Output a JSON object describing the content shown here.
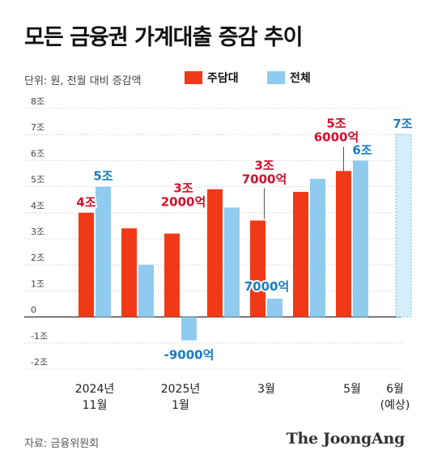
{
  "title": "모든 금융권 가계대출 증감 추이",
  "unit_note": "단위: 원, 전월 대비 증감액",
  "source": "자료: 금융위원회",
  "brand": "The JoongAng",
  "colors": {
    "red": "#f03a17",
    "blue": "#8ecbee",
    "label_red": "#d0102a",
    "label_blue": "#1a7cc4"
  },
  "chart_data": {
    "type": "bar",
    "ylim": [
      -2,
      8
    ],
    "y_ticks": [
      {
        "v": 8,
        "label": "8조"
      },
      {
        "v": 7,
        "label": "7조"
      },
      {
        "v": 6,
        "label": "6조"
      },
      {
        "v": 5,
        "label": "5조"
      },
      {
        "v": 4,
        "label": "4조"
      },
      {
        "v": 3,
        "label": "3조"
      },
      {
        "v": 2,
        "label": "2조"
      },
      {
        "v": 1,
        "label": "1조"
      },
      {
        "v": 0,
        "label": "0"
      },
      {
        "v": -1,
        "label": "-1조"
      },
      {
        "v": -2,
        "label": "-2조"
      }
    ],
    "x_labels": [
      {
        "group": 0,
        "lines": [
          "2024년",
          "11월"
        ]
      },
      {
        "group": 2,
        "lines": [
          "2025년",
          "1월"
        ]
      },
      {
        "group": 4,
        "lines": [
          "3월"
        ]
      },
      {
        "group": 6,
        "lines": [
          "5월"
        ]
      },
      {
        "group": 7,
        "lines": [
          "6월",
          "(예상)"
        ]
      }
    ],
    "series": [
      {
        "name": "주담대",
        "values": [
          4.0,
          3.4,
          3.2,
          4.9,
          3.7,
          4.8,
          5.6,
          null
        ]
      },
      {
        "name": "전체",
        "values": [
          5.0,
          2.0,
          -0.9,
          4.2,
          0.7,
          5.3,
          6.0,
          7.0
        ]
      }
    ],
    "projected_series_index": 1,
    "projected_group": 7,
    "data_labels": [
      {
        "series": 0,
        "group": 0,
        "lines": [
          "4조"
        ],
        "color": "red"
      },
      {
        "series": 1,
        "group": 0,
        "lines": [
          "5조"
        ],
        "color": "blue"
      },
      {
        "series": 0,
        "group": 2,
        "lines": [
          "3조",
          "2000억"
        ],
        "color": "red"
      },
      {
        "series": 1,
        "group": 2,
        "lines": [
          "-9000억"
        ],
        "color": "blue"
      },
      {
        "series": 0,
        "group": 4,
        "lines": [
          "3조",
          "7000억"
        ],
        "color": "red"
      },
      {
        "series": 1,
        "group": 4,
        "lines": [
          "7000억"
        ],
        "color": "blue"
      },
      {
        "series": 0,
        "group": 6,
        "lines": [
          "5조",
          "6000억"
        ],
        "color": "red"
      },
      {
        "series": 1,
        "group": 6,
        "lines": [
          "6조"
        ],
        "color": "blue"
      },
      {
        "series": 1,
        "group": 7,
        "lines": [
          "7조"
        ],
        "color": "blue"
      }
    ]
  }
}
